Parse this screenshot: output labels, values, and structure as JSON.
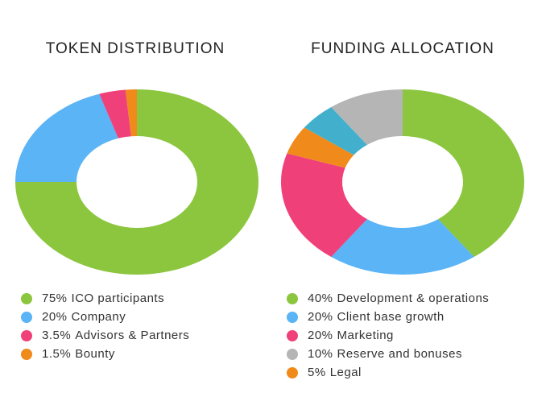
{
  "chart_data": [
    {
      "type": "pie",
      "title": "TOKEN DISTRIBUTION",
      "categories": [
        "ICO participants",
        "Company",
        "Advisors & Partners",
        "Bounty"
      ],
      "values": [
        75,
        20,
        3.5,
        1.5
      ],
      "value_labels": [
        "75%",
        "20%",
        "3.5%",
        "1.5%"
      ],
      "colors": [
        "#8cc63f",
        "#5ab4f5",
        "#f0407a",
        "#f08a1a"
      ]
    },
    {
      "type": "pie",
      "title": "FUNDING ALLOCATION",
      "categories": [
        "Development & operations",
        "Client base growth",
        "Marketing",
        "Legal",
        null,
        "Reserve and bonuses"
      ],
      "values": [
        40,
        20,
        20,
        5,
        5,
        10
      ],
      "value_labels": [
        "40%",
        "20%",
        "20%",
        "5%",
        null,
        "10%"
      ],
      "colors": [
        "#8cc63f",
        "#5ab4f5",
        "#f0407a",
        "#f08a1a",
        "#42b0cc",
        "#b5b5b5"
      ]
    }
  ]
}
